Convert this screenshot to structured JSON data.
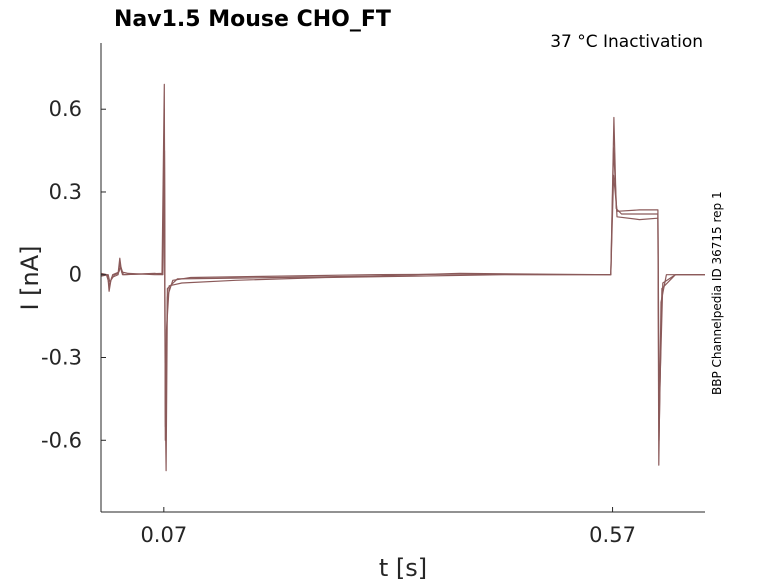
{
  "chart_data": {
    "type": "line",
    "title": "Nav1.5  Mouse  CHO_FT",
    "subtitle": "37 °C  Inactivation",
    "side_label": "BBP Channelpedia ID 36715 rep 1",
    "xlabel": "t [s]",
    "ylabel": "I [nA]",
    "xlim": [
      0.0,
      0.673
    ],
    "ylim": [
      -0.86,
      0.84
    ],
    "x_ticks": [
      0.07,
      0.57
    ],
    "x_tick_labels": [
      "0.07",
      "0.57"
    ],
    "y_ticks": [
      0.6,
      0.3,
      0,
      -0.3,
      -0.6
    ],
    "y_tick_labels": [
      "0.6",
      "0.3",
      "0",
      "-0.3",
      "-0.6"
    ],
    "grid": false,
    "line_color": "#8b5a5a",
    "series": [
      {
        "values": [
          [
            0.0,
            0.0
          ],
          [
            0.006,
            0.0
          ],
          [
            0.008,
            -0.02
          ],
          [
            0.009,
            -0.06
          ],
          [
            0.011,
            -0.02
          ],
          [
            0.015,
            0.0
          ],
          [
            0.019,
            0.005
          ],
          [
            0.021,
            0.06
          ],
          [
            0.023,
            0.01
          ],
          [
            0.03,
            0.005
          ],
          [
            0.06,
            0.0
          ],
          [
            0.068,
            0.0
          ],
          [
            0.0705,
            0.69
          ],
          [
            0.0715,
            -0.45
          ],
          [
            0.0725,
            -0.71
          ],
          [
            0.074,
            -0.08
          ],
          [
            0.08,
            -0.02
          ],
          [
            0.1,
            -0.01
          ],
          [
            0.2,
            -0.005
          ],
          [
            0.3,
            0.0
          ],
          [
            0.4,
            0.002
          ],
          [
            0.5,
            0.0
          ],
          [
            0.568,
            0.0
          ],
          [
            0.5715,
            0.57
          ],
          [
            0.574,
            0.24
          ],
          [
            0.58,
            0.22
          ],
          [
            0.62,
            0.22
          ],
          [
            0.6205,
            0.22
          ],
          [
            0.6215,
            -0.69
          ],
          [
            0.624,
            -0.1
          ],
          [
            0.63,
            0.0
          ],
          [
            0.673,
            0.0
          ]
        ]
      },
      {
        "values": [
          [
            0.0,
            0.005
          ],
          [
            0.007,
            0.0
          ],
          [
            0.009,
            -0.04
          ],
          [
            0.012,
            -0.01
          ],
          [
            0.019,
            0.0
          ],
          [
            0.021,
            0.04
          ],
          [
            0.024,
            0.0
          ],
          [
            0.06,
            0.005
          ],
          [
            0.069,
            0.0
          ],
          [
            0.0705,
            0.6
          ],
          [
            0.0718,
            -0.55
          ],
          [
            0.073,
            -0.2
          ],
          [
            0.076,
            -0.04
          ],
          [
            0.09,
            -0.03
          ],
          [
            0.15,
            -0.02
          ],
          [
            0.25,
            -0.01
          ],
          [
            0.35,
            -0.005
          ],
          [
            0.45,
            0.0
          ],
          [
            0.568,
            0.0
          ],
          [
            0.5712,
            0.46
          ],
          [
            0.575,
            0.21
          ],
          [
            0.6,
            0.2
          ],
          [
            0.6205,
            0.205
          ],
          [
            0.6218,
            -0.6
          ],
          [
            0.625,
            -0.05
          ],
          [
            0.64,
            0.0
          ],
          [
            0.673,
            0.0
          ]
        ]
      },
      {
        "values": [
          [
            0.0,
            -0.005
          ],
          [
            0.008,
            0.0
          ],
          [
            0.01,
            -0.03
          ],
          [
            0.013,
            0.0
          ],
          [
            0.02,
            0.01
          ],
          [
            0.022,
            0.03
          ],
          [
            0.025,
            0.0
          ],
          [
            0.069,
            0.005
          ],
          [
            0.0707,
            0.45
          ],
          [
            0.0716,
            -0.6
          ],
          [
            0.074,
            -0.05
          ],
          [
            0.085,
            -0.015
          ],
          [
            0.2,
            -0.01
          ],
          [
            0.3,
            -0.005
          ],
          [
            0.4,
            0.005
          ],
          [
            0.5,
            0.002
          ],
          [
            0.568,
            0.0
          ],
          [
            0.5712,
            0.36
          ],
          [
            0.575,
            0.23
          ],
          [
            0.6,
            0.235
          ],
          [
            0.6205,
            0.235
          ],
          [
            0.622,
            -0.5
          ],
          [
            0.626,
            -0.03
          ],
          [
            0.64,
            0.0
          ],
          [
            0.673,
            0.0
          ]
        ]
      }
    ]
  }
}
